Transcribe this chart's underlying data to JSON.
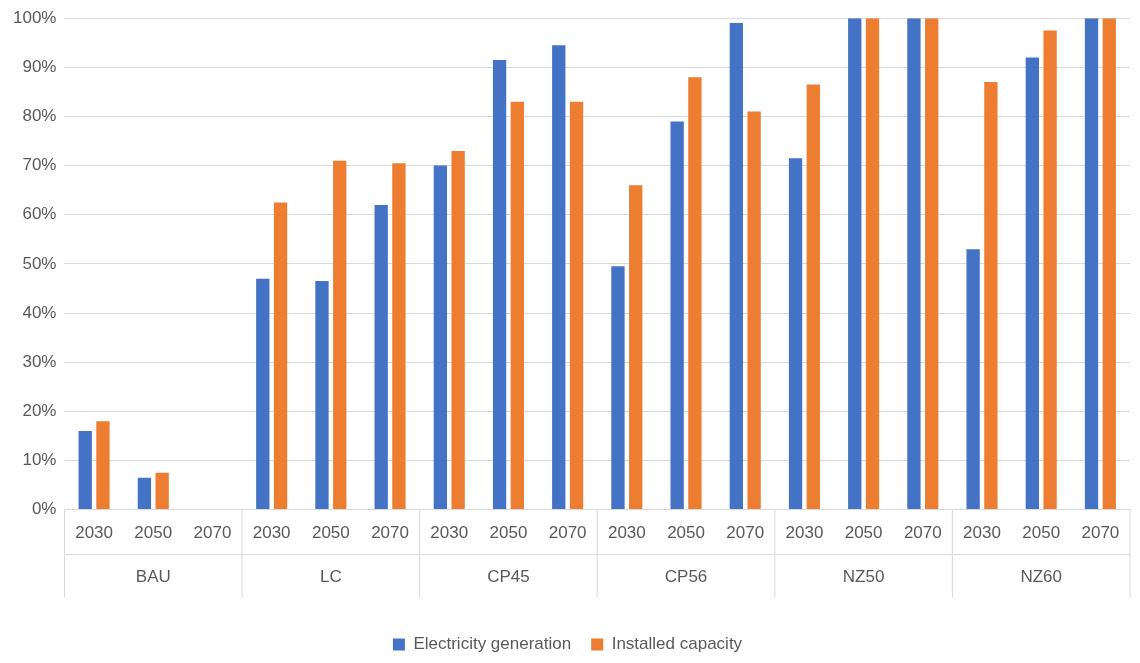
{
  "chart_data": {
    "type": "bar",
    "categories": [
      "2030",
      "2050",
      "2070",
      "2030",
      "2050",
      "2070",
      "2030",
      "2050",
      "2070",
      "2030",
      "2050",
      "2070",
      "2030",
      "2050",
      "2070",
      "2030",
      "2050",
      "2070"
    ],
    "annotations": [
      "BAU",
      "LC",
      "CP45",
      "CP56",
      "NZ50",
      "NZ60"
    ],
    "series": [
      {
        "name": "Electricity generation",
        "color": "#4472c4",
        "values": [
          16,
          6.5,
          0,
          47,
          46.5,
          62,
          70,
          91.5,
          94.5,
          49.5,
          79,
          99,
          71.5,
          100,
          100,
          53,
          92,
          100
        ]
      },
      {
        "name": "Installed capacity",
        "color": "#ed7d31",
        "values": [
          18,
          7.5,
          0,
          62.5,
          71,
          70.5,
          73,
          83,
          83,
          66,
          88,
          81,
          86.5,
          100,
          100,
          87,
          97.5,
          100
        ]
      }
    ],
    "ylim": [
      0,
      100
    ],
    "yticks": [
      {
        "value": 0,
        "label": "0%"
      },
      {
        "value": 10,
        "label": "10%"
      },
      {
        "value": 20,
        "label": "20%"
      },
      {
        "value": 30,
        "label": "30%"
      },
      {
        "value": 40,
        "label": "40%"
      },
      {
        "value": 50,
        "label": "50%"
      },
      {
        "value": 60,
        "label": "60%"
      },
      {
        "value": 70,
        "label": "70%"
      },
      {
        "value": 80,
        "label": "80%"
      },
      {
        "value": 90,
        "label": "90%"
      },
      {
        "value": 100,
        "label": "100%"
      }
    ],
    "grid": "y",
    "legend": "bottom"
  }
}
